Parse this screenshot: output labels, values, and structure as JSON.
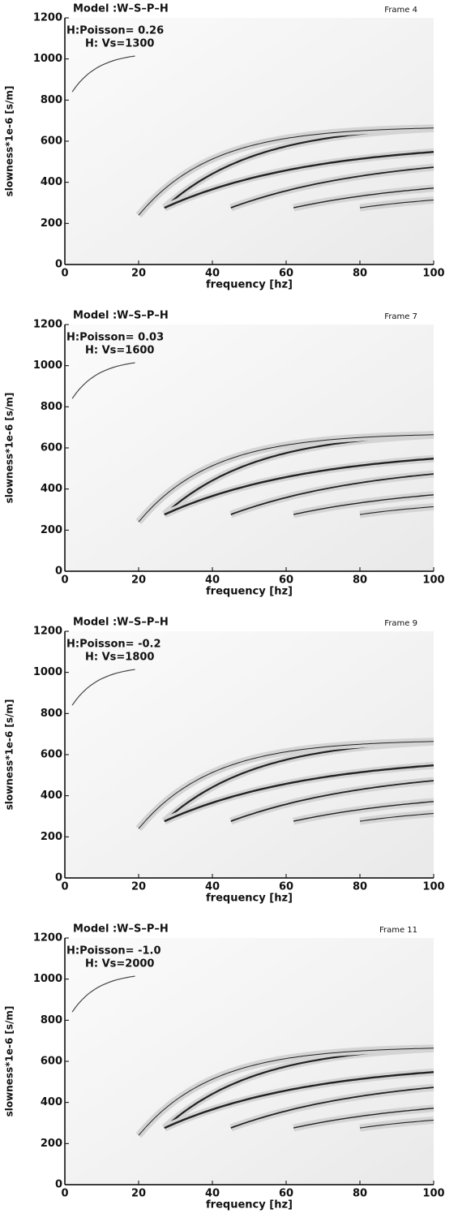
{
  "chart_data": [
    {
      "type": "image",
      "title": "Model :W–S–P–H",
      "frame_label": "Frame 4",
      "annotations": [
        "H:Poisson= 0.26",
        "H: Vs=1300"
      ],
      "xlabel": "frequency [hz]",
      "ylabel": "slowness*1e-6 [s/m]",
      "xlim": [
        0,
        100
      ],
      "ylim": [
        0,
        1200
      ],
      "xticks": [
        0,
        20,
        40,
        60,
        80,
        100
      ],
      "yticks": [
        0,
        200,
        400,
        600,
        800,
        1000,
        1200
      ]
    },
    {
      "type": "image",
      "title": "Model :W–S–P–H",
      "frame_label": "Frame 7",
      "annotations": [
        "H:Poisson= 0.03",
        "H: Vs=1600"
      ],
      "xlabel": "frequency [hz]",
      "ylabel": "slowness*1e-6 [s/m]",
      "xlim": [
        0,
        100
      ],
      "ylim": [
        0,
        1200
      ],
      "xticks": [
        0,
        20,
        40,
        60,
        80,
        100
      ],
      "yticks": [
        0,
        200,
        400,
        600,
        800,
        1000,
        1200
      ]
    },
    {
      "type": "image",
      "title": "Model :W–S–P–H",
      "frame_label": "Frame 9",
      "annotations": [
        "H:Poisson= -0.2",
        "H: Vs=1800"
      ],
      "xlabel": "frequency [hz]",
      "ylabel": "slowness*1e-6 [s/m]",
      "xlim": [
        0,
        100
      ],
      "ylim": [
        0,
        1200
      ],
      "xticks": [
        0,
        20,
        40,
        60,
        80,
        100
      ],
      "yticks": [
        0,
        200,
        400,
        600,
        800,
        1000,
        1200
      ]
    },
    {
      "type": "image",
      "title": "Model :W–S–P–H",
      "frame_label": "Frame 11",
      "annotations": [
        "H:Poisson= -1.0",
        "H: Vs=2000"
      ],
      "xlabel": "frequency [hz]",
      "ylabel": "slowness*1e-6 [s/m]",
      "xlim": [
        0,
        100
      ],
      "ylim": [
        0,
        1200
      ],
      "xticks": [
        0,
        20,
        40,
        60,
        80,
        100
      ],
      "yticks": [
        0,
        200,
        400,
        600,
        800,
        1000,
        1200
      ]
    }
  ]
}
